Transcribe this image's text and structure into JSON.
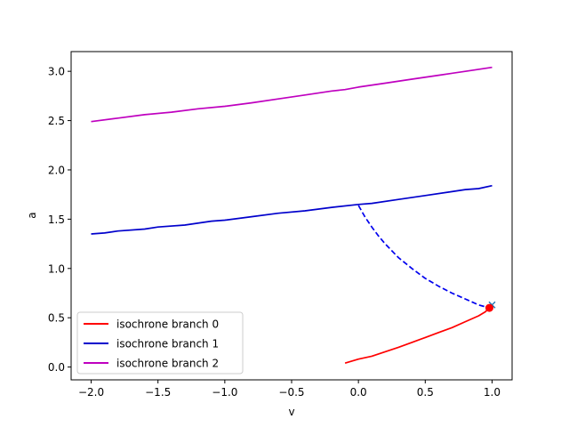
{
  "chart_data": {
    "type": "line",
    "title": "",
    "xlabel": "v",
    "ylabel": "a",
    "xlim": [
      -2.15,
      1.15
    ],
    "ylim": [
      -0.13,
      3.2
    ],
    "grid": false,
    "legend_position": "lower-left",
    "xticks": [
      -2.0,
      -1.5,
      -1.0,
      -0.5,
      0.0,
      0.5,
      1.0
    ],
    "xtick_labels": [
      "−2.0",
      "−1.5",
      "−1.0",
      "−0.5",
      "0.0",
      "0.5",
      "1.0"
    ],
    "yticks": [
      0.0,
      0.5,
      1.0,
      1.5,
      2.0,
      2.5,
      3.0
    ],
    "ytick_labels": [
      "0.0",
      "0.5",
      "1.0",
      "1.5",
      "2.0",
      "2.5",
      "3.0"
    ],
    "series": [
      {
        "name": "isochrone branch 0",
        "color": "#ff0000",
        "style": "solid",
        "x": [
          -0.1,
          0.0,
          0.1,
          0.2,
          0.3,
          0.4,
          0.5,
          0.6,
          0.7,
          0.8,
          0.9,
          0.95,
          0.98
        ],
        "y": [
          0.04,
          0.08,
          0.11,
          0.155,
          0.2,
          0.25,
          0.3,
          0.35,
          0.4,
          0.46,
          0.52,
          0.56,
          0.6
        ]
      },
      {
        "name": "isochrone branch 1",
        "color": "#0000cc",
        "style": "solid",
        "x": [
          -2.0,
          -1.9,
          -1.8,
          -1.6,
          -1.5,
          -1.3,
          -1.1,
          -1.0,
          -0.8,
          -0.6,
          -0.4,
          -0.2,
          0.0,
          0.1,
          0.3,
          0.5,
          0.7,
          0.8,
          0.9,
          1.0
        ],
        "y": [
          1.35,
          1.36,
          1.38,
          1.4,
          1.42,
          1.44,
          1.48,
          1.49,
          1.525,
          1.56,
          1.585,
          1.62,
          1.65,
          1.66,
          1.7,
          1.74,
          1.78,
          1.8,
          1.81,
          1.84
        ]
      },
      {
        "name": "isochrone branch 2",
        "color": "#bf00bf",
        "style": "solid",
        "x": [
          -2.0,
          -1.8,
          -1.6,
          -1.4,
          -1.2,
          -1.0,
          -0.8,
          -0.6,
          -0.4,
          -0.2,
          -0.1,
          0.0,
          0.2,
          0.4,
          0.6,
          0.8,
          1.0
        ],
        "y": [
          2.49,
          2.525,
          2.56,
          2.585,
          2.62,
          2.645,
          2.68,
          2.72,
          2.76,
          2.8,
          2.815,
          2.84,
          2.88,
          2.92,
          2.96,
          3.0,
          3.04
        ]
      },
      {
        "color": "#0000ee",
        "style": "dashed",
        "x": [
          0.0,
          0.05,
          0.1,
          0.15,
          0.2,
          0.3,
          0.4,
          0.5,
          0.6,
          0.7,
          0.8,
          0.9,
          0.98
        ],
        "y": [
          1.64,
          1.52,
          1.42,
          1.33,
          1.25,
          1.11,
          1.0,
          0.9,
          0.82,
          0.75,
          0.69,
          0.63,
          0.6
        ]
      }
    ],
    "markers": [
      {
        "type": "x",
        "x": 1.0,
        "y": 0.63,
        "color": "#1f77b4"
      },
      {
        "type": "dot",
        "x": 0.98,
        "y": 0.6,
        "color": "#ff0000"
      }
    ]
  }
}
